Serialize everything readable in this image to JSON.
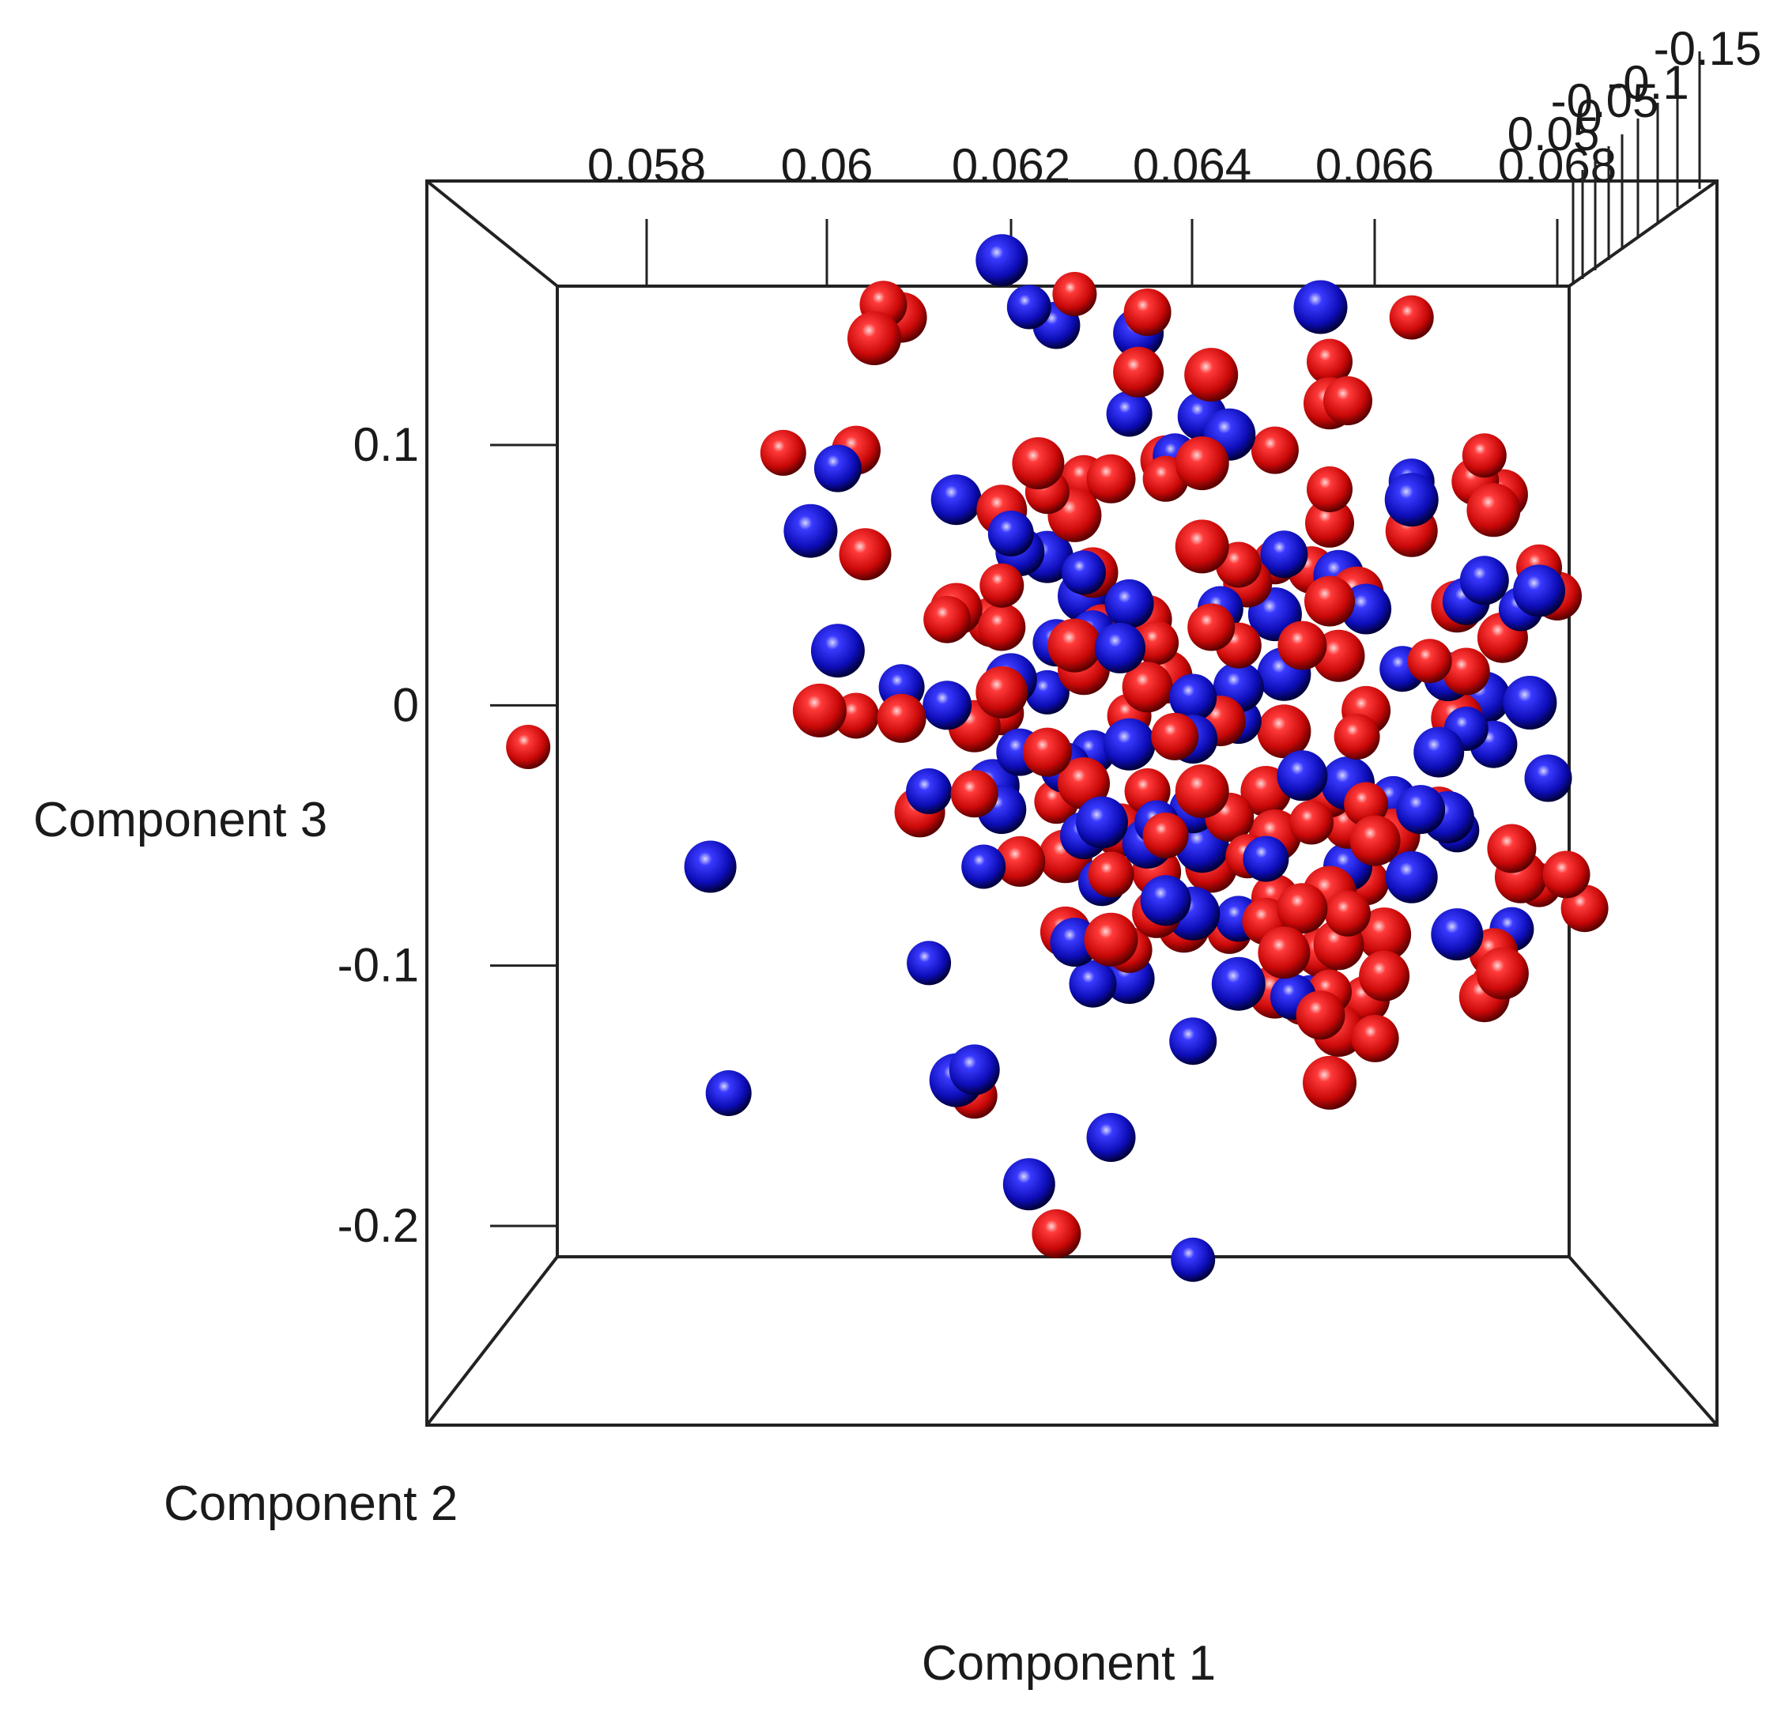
{
  "chart_data": {
    "type": "scatter",
    "projection": "3d",
    "grid": false,
    "legend": "none",
    "xlabel": "Component 1",
    "ylabel": "Component 3",
    "zlabel": "Component 2",
    "x_ticks": [
      "0.058",
      "0.06",
      "0.062",
      "0.064",
      "0.066",
      "0.068"
    ],
    "x_tick_values": [
      0.058,
      0.06,
      0.062,
      0.064,
      0.066,
      0.068
    ],
    "y_ticks": [
      "0.1",
      "0",
      "-0.1",
      "-0.2"
    ],
    "y_tick_values": [
      0.1,
      0,
      -0.1,
      -0.2
    ],
    "z_ticks": [
      "-0.15",
      "-0.1",
      "-0.05",
      "0",
      "0.05"
    ],
    "xlim": [
      0.0565,
      0.0685
    ],
    "ylim": [
      -0.21,
      0.165
    ],
    "colors": {
      "red": "#d20f0f",
      "blue": "#1010c0",
      "red_dark": "#5a0000",
      "blue_dark": "#00003a"
    },
    "series": [
      {
        "color_name": "red",
        "points": [
          [
            0.0567,
            -0.016
          ],
          [
            0.0606,
            0.154
          ],
          [
            0.0608,
            0.149
          ],
          [
            0.0605,
            0.141
          ],
          [
            0.0595,
            0.097
          ],
          [
            0.0603,
            0.098
          ],
          [
            0.0604,
            0.058
          ],
          [
            0.0627,
            0.158
          ],
          [
            0.0635,
            0.151
          ],
          [
            0.0634,
            0.128
          ],
          [
            0.0642,
            0.127
          ],
          [
            0.0655,
            0.132
          ],
          [
            0.0657,
            0.117
          ],
          [
            0.0655,
            0.116
          ],
          [
            0.0664,
            0.149
          ],
          [
            0.0649,
            0.098
          ],
          [
            0.0637,
            0.094
          ],
          [
            0.0641,
            0.093
          ],
          [
            0.0637,
            0.087
          ],
          [
            0.0631,
            0.087
          ],
          [
            0.0623,
            0.093
          ],
          [
            0.0624,
            0.082
          ],
          [
            0.0628,
            0.087
          ],
          [
            0.0619,
            0.075
          ],
          [
            0.0627,
            0.073
          ],
          [
            0.0655,
            0.083
          ],
          [
            0.0655,
            0.07
          ],
          [
            0.0664,
            0.067
          ],
          [
            0.0672,
            0.096
          ],
          [
            0.0671,
            0.086
          ],
          [
            0.0674,
            0.081
          ],
          [
            0.0673,
            0.075
          ],
          [
            0.0678,
            0.053
          ],
          [
            0.068,
            0.042
          ],
          [
            0.0669,
            0.038
          ],
          [
            0.0649,
            0.055
          ],
          [
            0.0653,
            0.052
          ],
          [
            0.0655,
            0.04
          ],
          [
            0.0658,
            0.043
          ],
          [
            0.0645,
            0.054
          ],
          [
            0.0646,
            0.047
          ],
          [
            0.0614,
            0.037
          ],
          [
            0.0619,
            0.046
          ],
          [
            0.0613,
            0.033
          ],
          [
            0.0618,
            0.032
          ],
          [
            0.0627,
            0.023
          ],
          [
            0.063,
            0.03
          ],
          [
            0.0635,
            0.033
          ],
          [
            0.0628,
            0.014
          ],
          [
            0.0636,
            0.024
          ],
          [
            0.0642,
            0.03
          ],
          [
            0.0635,
            0.007
          ],
          [
            0.0637,
            0.011
          ],
          [
            0.0645,
            0.023
          ],
          [
            0.0652,
            0.023
          ],
          [
            0.0656,
            0.019
          ],
          [
            0.0666,
            0.017
          ],
          [
            0.067,
            0.013
          ],
          [
            0.0674,
            0.026
          ],
          [
            0.0599,
            -0.002
          ],
          [
            0.0603,
            -0.004
          ],
          [
            0.0608,
            -0.005
          ],
          [
            0.0619,
            0.005
          ],
          [
            0.0633,
            -0.004
          ],
          [
            0.0638,
            -0.012
          ],
          [
            0.0643,
            -0.006
          ],
          [
            0.065,
            -0.01
          ],
          [
            0.0658,
            -0.012
          ],
          [
            0.0659,
            -0.002
          ],
          [
            0.0669,
            -0.005
          ],
          [
            0.0659,
            -0.038
          ],
          [
            0.0655,
            -0.034
          ],
          [
            0.0648,
            -0.033
          ],
          [
            0.0641,
            -0.033
          ],
          [
            0.0635,
            -0.033
          ],
          [
            0.0624,
            -0.018
          ],
          [
            0.0628,
            -0.03
          ],
          [
            0.0625,
            -0.037
          ],
          [
            0.0616,
            -0.034
          ],
          [
            0.061,
            -0.041
          ],
          [
            0.0632,
            -0.048
          ],
          [
            0.0637,
            -0.05
          ],
          [
            0.0644,
            -0.043
          ],
          [
            0.0649,
            -0.05
          ],
          [
            0.0653,
            -0.045
          ],
          [
            0.0657,
            -0.046
          ],
          [
            0.066,
            -0.052
          ],
          [
            0.0662,
            -0.05
          ],
          [
            0.0667,
            -0.04
          ],
          [
            0.0675,
            -0.055
          ],
          [
            0.0676,
            -0.066
          ],
          [
            0.0678,
            -0.069
          ],
          [
            0.0681,
            -0.065
          ],
          [
            0.0621,
            -0.06
          ],
          [
            0.0626,
            -0.058
          ],
          [
            0.0631,
            -0.065
          ],
          [
            0.0636,
            -0.064
          ],
          [
            0.0642,
            -0.062
          ],
          [
            0.0646,
            -0.058
          ],
          [
            0.0649,
            -0.074
          ],
          [
            0.0652,
            -0.078
          ],
          [
            0.0655,
            -0.072
          ],
          [
            0.0659,
            -0.068
          ],
          [
            0.0636,
            -0.08
          ],
          [
            0.0639,
            -0.085
          ],
          [
            0.0644,
            -0.087
          ],
          [
            0.0648,
            -0.083
          ],
          [
            0.0656,
            -0.092
          ],
          [
            0.0661,
            -0.088
          ],
          [
            0.0657,
            -0.08
          ],
          [
            0.0654,
            -0.095
          ],
          [
            0.065,
            -0.095
          ],
          [
            0.0655,
            -0.11
          ],
          [
            0.0659,
            -0.113
          ],
          [
            0.0661,
            -0.104
          ],
          [
            0.0649,
            -0.11
          ],
          [
            0.0652,
            -0.114
          ],
          [
            0.0654,
            -0.119
          ],
          [
            0.0656,
            -0.125
          ],
          [
            0.0658,
            -0.122
          ],
          [
            0.066,
            -0.128
          ],
          [
            0.0626,
            -0.087
          ],
          [
            0.0631,
            -0.09
          ],
          [
            0.0633,
            -0.094
          ],
          [
            0.0673,
            -0.095
          ],
          [
            0.0674,
            -0.103
          ],
          [
            0.0673,
            -0.107
          ],
          [
            0.0683,
            -0.078
          ],
          [
            0.0672,
            -0.112
          ],
          [
            0.0655,
            -0.145
          ],
          [
            0.0616,
            -0.15
          ],
          [
            0.0625,
            -0.203
          ],
          [
            0.0616,
            -0.008
          ],
          [
            0.0619,
            -0.003
          ],
          [
            0.0619,
            0.03
          ],
          [
            0.0629,
            0.051
          ],
          [
            0.0641,
            0.061
          ]
        ]
      },
      {
        "color_name": "blue",
        "points": [
          [
            0.0619,
            0.171
          ],
          [
            0.0622,
            0.153
          ],
          [
            0.0625,
            0.146
          ],
          [
            0.0634,
            0.143
          ],
          [
            0.0654,
            0.153
          ],
          [
            0.0633,
            0.112
          ],
          [
            0.0641,
            0.111
          ],
          [
            0.0644,
            0.104
          ],
          [
            0.0638,
            0.096
          ],
          [
            0.0601,
            0.091
          ],
          [
            0.0614,
            0.079
          ],
          [
            0.0598,
            0.067
          ],
          [
            0.062,
            0.066
          ],
          [
            0.0621,
            0.059
          ],
          [
            0.0624,
            0.057
          ],
          [
            0.0628,
            0.051
          ],
          [
            0.065,
            0.058
          ],
          [
            0.0656,
            0.05
          ],
          [
            0.0664,
            0.079
          ],
          [
            0.0664,
            0.086
          ],
          [
            0.0672,
            0.048
          ],
          [
            0.0678,
            0.044
          ],
          [
            0.0676,
            0.037
          ],
          [
            0.067,
            0.04
          ],
          [
            0.0659,
            0.037
          ],
          [
            0.0649,
            0.035
          ],
          [
            0.0643,
            0.037
          ],
          [
            0.0633,
            0.039
          ],
          [
            0.0628,
            0.042
          ],
          [
            0.0629,
            0.028
          ],
          [
            0.0625,
            0.024
          ],
          [
            0.0632,
            0.022
          ],
          [
            0.0601,
            0.021
          ],
          [
            0.0608,
            0.007
          ],
          [
            0.0613,
            0.0
          ],
          [
            0.062,
            0.01
          ],
          [
            0.0624,
            0.005
          ],
          [
            0.064,
            0.003
          ],
          [
            0.0645,
            0.007
          ],
          [
            0.065,
            0.012
          ],
          [
            0.0663,
            0.014
          ],
          [
            0.0668,
            0.011
          ],
          [
            0.0672,
            0.003
          ],
          [
            0.067,
            -0.009
          ],
          [
            0.0673,
            -0.015
          ],
          [
            0.0667,
            -0.018
          ],
          [
            0.0677,
            0.001
          ],
          [
            0.0645,
            -0.006
          ],
          [
            0.064,
            -0.013
          ],
          [
            0.0633,
            -0.015
          ],
          [
            0.0629,
            -0.018
          ],
          [
            0.0621,
            -0.018
          ],
          [
            0.0626,
            -0.024
          ],
          [
            0.0618,
            -0.031
          ],
          [
            0.0611,
            -0.033
          ],
          [
            0.0619,
            -0.04
          ],
          [
            0.063,
            -0.045
          ],
          [
            0.0636,
            -0.045
          ],
          [
            0.064,
            -0.04
          ],
          [
            0.0652,
            -0.027
          ],
          [
            0.0657,
            -0.03
          ],
          [
            0.0662,
            -0.036
          ],
          [
            0.0665,
            -0.04
          ],
          [
            0.0668,
            -0.043
          ],
          [
            0.0669,
            -0.048
          ],
          [
            0.0628,
            -0.05
          ],
          [
            0.0635,
            -0.053
          ],
          [
            0.0641,
            -0.054
          ],
          [
            0.0648,
            -0.059
          ],
          [
            0.0657,
            -0.062
          ],
          [
            0.0664,
            -0.066
          ],
          [
            0.0617,
            -0.062
          ],
          [
            0.063,
            -0.068
          ],
          [
            0.0637,
            -0.075
          ],
          [
            0.064,
            -0.08
          ],
          [
            0.0645,
            -0.082
          ],
          [
            0.0627,
            -0.091
          ],
          [
            0.0669,
            -0.088
          ],
          [
            0.0675,
            -0.086
          ],
          [
            0.0629,
            -0.107
          ],
          [
            0.0633,
            -0.105
          ],
          [
            0.0645,
            -0.107
          ],
          [
            0.0651,
            -0.112
          ],
          [
            0.0653,
            -0.113
          ],
          [
            0.0587,
            -0.062
          ],
          [
            0.0611,
            -0.099
          ],
          [
            0.064,
            -0.129
          ],
          [
            0.0616,
            -0.14
          ],
          [
            0.0614,
            -0.144
          ],
          [
            0.0589,
            -0.149
          ],
          [
            0.0631,
            -0.166
          ],
          [
            0.0622,
            -0.184
          ],
          [
            0.064,
            -0.213
          ],
          [
            0.0679,
            -0.028
          ]
        ]
      }
    ]
  }
}
